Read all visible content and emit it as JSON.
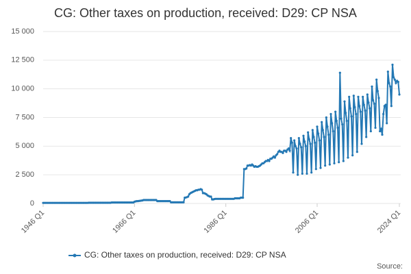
{
  "chart_data": {
    "type": "line",
    "title": "CG: Other taxes on production, received: D29: CP NSA",
    "source": "Source:",
    "categories": [
      "1946 Q1",
      null,
      null,
      null,
      null,
      null,
      null,
      null,
      null,
      null,
      null,
      null,
      null,
      null,
      null,
      null,
      null,
      null,
      null,
      null,
      null,
      null,
      null,
      null,
      null,
      null,
      null,
      null,
      null,
      null,
      null,
      null,
      null,
      null,
      null,
      null,
      null,
      null,
      null,
      null,
      null,
      null,
      null,
      null,
      null,
      null,
      null,
      null,
      null,
      null,
      null,
      null,
      null,
      null,
      null,
      null,
      null,
      null,
      null,
      null,
      null,
      null,
      null,
      null,
      null,
      null,
      null,
      null,
      null,
      null,
      null,
      null,
      null,
      null,
      null,
      null,
      null,
      null,
      null,
      null,
      "1966 Q1",
      null,
      null,
      null,
      null,
      null,
      null,
      null,
      null,
      null,
      null,
      null,
      null,
      null,
      null,
      null,
      null,
      null,
      null,
      null,
      null,
      null,
      null,
      null,
      null,
      null,
      null,
      null,
      null,
      null,
      null,
      null,
      null,
      null,
      null,
      null,
      null,
      null,
      null,
      null,
      null,
      null,
      null,
      null,
      null,
      null,
      null,
      null,
      null,
      null,
      null,
      null,
      null,
      null,
      null,
      null,
      null,
      null,
      null,
      null,
      null,
      null,
      null,
      null,
      null,
      null,
      null,
      null,
      null,
      null,
      null,
      null,
      null,
      null,
      null,
      null,
      null,
      null,
      null,
      null,
      "1986 Q1",
      null,
      null,
      null,
      null,
      null,
      null,
      null,
      null,
      null,
      null,
      null,
      null,
      null,
      null,
      null,
      null,
      null,
      null,
      null,
      null,
      null,
      null,
      null,
      null,
      null,
      null,
      null,
      null,
      null,
      null,
      null,
      null,
      null,
      null,
      null,
      null,
      null,
      null,
      null,
      null,
      null,
      null,
      null,
      null,
      null,
      null,
      null,
      null,
      null,
      null,
      null,
      null,
      null,
      null,
      null,
      null,
      null,
      null,
      null,
      null,
      null,
      null,
      null,
      null,
      null,
      null,
      null,
      null,
      null,
      null,
      null,
      null,
      null,
      null,
      null,
      null,
      null,
      null,
      null,
      "2006 Q1",
      null,
      null,
      null,
      null,
      null,
      null,
      null,
      null,
      null,
      null,
      null,
      null,
      null,
      null,
      null,
      null,
      null,
      null,
      null,
      null,
      null,
      null,
      null,
      null,
      null,
      null,
      null,
      null,
      null,
      null,
      null,
      null,
      null,
      null,
      null,
      null,
      null,
      null,
      null,
      null,
      null,
      null,
      null,
      null,
      null,
      null,
      null,
      null,
      null,
      null,
      null,
      null,
      null,
      null,
      null,
      null,
      null,
      null,
      null,
      null,
      null,
      null,
      null,
      null,
      null,
      null,
      null,
      null,
      null,
      null,
      null,
      "2024 Q1"
    ],
    "series": [
      {
        "name": "CG: Other taxes on production, received: D29: CP NSA",
        "color": "#2478b4",
        "values": [
          50,
          50,
          50,
          50,
          50,
          50,
          50,
          50,
          50,
          50,
          50,
          50,
          50,
          50,
          50,
          50,
          50,
          50,
          50,
          50,
          50,
          50,
          50,
          50,
          50,
          50,
          50,
          50,
          50,
          50,
          50,
          50,
          50,
          50,
          50,
          50,
          50,
          50,
          50,
          50,
          60,
          60,
          60,
          60,
          60,
          60,
          60,
          60,
          60,
          60,
          60,
          60,
          60,
          60,
          60,
          60,
          60,
          60,
          60,
          60,
          80,
          80,
          80,
          80,
          80,
          80,
          80,
          80,
          80,
          80,
          80,
          80,
          80,
          80,
          80,
          80,
          80,
          80,
          80,
          80,
          150,
          180,
          200,
          200,
          220,
          230,
          250,
          260,
          300,
          300,
          300,
          300,
          300,
          300,
          300,
          300,
          300,
          300,
          300,
          300,
          200,
          200,
          200,
          200,
          200,
          200,
          200,
          200,
          200,
          200,
          200,
          200,
          100,
          100,
          100,
          100,
          100,
          100,
          100,
          100,
          100,
          100,
          100,
          100,
          500,
          520,
          550,
          600,
          800,
          900,
          950,
          1000,
          1050,
          1100,
          1150,
          1150,
          1200,
          1200,
          1250,
          1200,
          900,
          900,
          850,
          800,
          700,
          650,
          600,
          600,
          350,
          350,
          380,
          400,
          400,
          400,
          400,
          400,
          400,
          400,
          400,
          400,
          400,
          400,
          400,
          400,
          400,
          400,
          400,
          400,
          450,
          450,
          450,
          450,
          450,
          500,
          500,
          500,
          3000,
          3000,
          3050,
          3300,
          3300,
          3350,
          3300,
          3400,
          3300,
          3200,
          3250,
          3200,
          3200,
          3250,
          3300,
          3400,
          3500,
          3500,
          3600,
          3700,
          3700,
          3800,
          3700,
          3900,
          3900,
          4000,
          4100,
          4000,
          4200,
          4300,
          4500,
          4600,
          4500,
          4500,
          4400,
          4600,
          4600,
          4500,
          4700,
          4800,
          4600,
          5700,
          5300,
          2700,
          5500,
          5000,
          4800,
          2500,
          5700,
          5200,
          4900,
          2600,
          5900,
          5400,
          5000,
          2600,
          6200,
          5600,
          5200,
          2700,
          6400,
          5800,
          5300,
          3000,
          6700,
          6100,
          5500,
          3100,
          7100,
          6400,
          5800,
          3300,
          7500,
          6700,
          6000,
          3400,
          7800,
          7000,
          6300,
          3500,
          8000,
          7200,
          6600,
          3600,
          11400,
          7400,
          6900,
          3700,
          8900,
          7900,
          7200,
          4000,
          9300,
          8300,
          7600,
          4200,
          9400,
          8400,
          7800,
          4500,
          9300,
          8500,
          8000,
          5200,
          9300,
          8600,
          8100,
          5800,
          9500,
          8800,
          8300,
          6300,
          10200,
          9000,
          8700,
          6600,
          10800,
          9800,
          9200,
          6300,
          6500,
          6000,
          7800,
          8500,
          8600,
          7000,
          11500,
          10500,
          10200,
          8500,
          12100,
          11000,
          10800,
          10500,
          10700,
          10600,
          9500
        ]
      }
    ],
    "ylim": [
      0,
      15000
    ],
    "yticks": [
      0,
      {
        "value": 2500,
        "label": "2 500"
      },
      {
        "value": 5000,
        "label": "5 000"
      },
      {
        "value": 7500,
        "label": "7 500"
      },
      {
        "value": 10000,
        "label": "10 000"
      },
      {
        "value": 12500,
        "label": "12 500"
      },
      {
        "value": 15000,
        "label": "15 000"
      }
    ],
    "grid": true,
    "legend": "bottom"
  }
}
